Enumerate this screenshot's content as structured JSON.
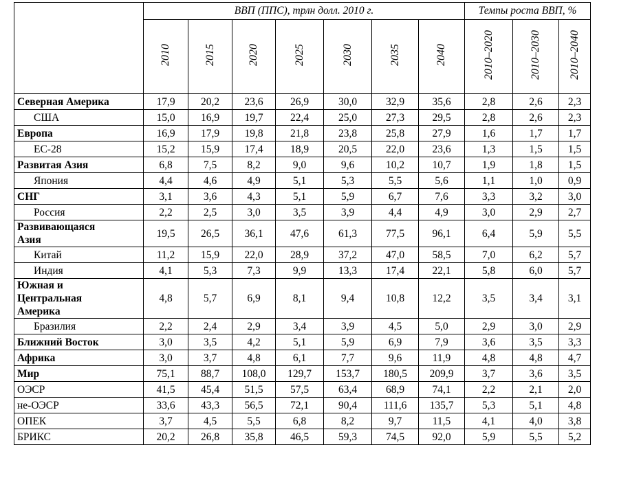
{
  "table": {
    "header": {
      "gdp": "ВВП (ППС), трлн долл. 2010 г.",
      "growth": "Темпы роста ВВП, %",
      "years": [
        "2010",
        "2015",
        "2020",
        "2025",
        "2030",
        "2035",
        "2040"
      ],
      "periods": [
        "2010–2020",
        "2010–2030",
        "2010–2040"
      ]
    },
    "rows": [
      {
        "label": "Северная Америка",
        "values": [
          "17,9",
          "20,2",
          "23,6",
          "26,9",
          "30,0",
          "32,9",
          "35,6",
          "2,8",
          "2,6",
          "2,3"
        ]
      },
      {
        "label": "США",
        "values": [
          "15,0",
          "16,9",
          "19,7",
          "22,4",
          "25,0",
          "27,3",
          "29,5",
          "2,8",
          "2,6",
          "2,3"
        ]
      },
      {
        "label": "Европа",
        "values": [
          "16,9",
          "17,9",
          "19,8",
          "21,8",
          "23,8",
          "25,8",
          "27,9",
          "1,6",
          "1,7",
          "1,7"
        ]
      },
      {
        "label": "ЕС-28",
        "values": [
          "15,2",
          "15,9",
          "17,4",
          "18,9",
          "20,5",
          "22,0",
          "23,6",
          "1,3",
          "1,5",
          "1,5"
        ]
      },
      {
        "label": "Развитая Азия",
        "values": [
          "6,8",
          "7,5",
          "8,2",
          "9,0",
          "9,6",
          "10,2",
          "10,7",
          "1,9",
          "1,8",
          "1,5"
        ]
      },
      {
        "label": "Япония",
        "values": [
          "4,4",
          "4,6",
          "4,9",
          "5,1",
          "5,3",
          "5,5",
          "5,6",
          "1,1",
          "1,0",
          "0,9"
        ]
      },
      {
        "label": "СНГ",
        "values": [
          "3,1",
          "3,6",
          "4,3",
          "5,1",
          "5,9",
          "6,7",
          "7,6",
          "3,3",
          "3,2",
          "3,0"
        ]
      },
      {
        "label": "Россия",
        "values": [
          "2,2",
          "2,5",
          "3,0",
          "3,5",
          "3,9",
          "4,4",
          "4,9",
          "3,0",
          "2,9",
          "2,7"
        ]
      },
      {
        "label": "Развивающаяся\nАзия",
        "values": [
          "19,5",
          "26,5",
          "36,1",
          "47,6",
          "61,3",
          "77,5",
          "96,1",
          "6,4",
          "5,9",
          "5,5"
        ]
      },
      {
        "label": "Китай",
        "values": [
          "11,2",
          "15,9",
          "22,0",
          "28,9",
          "37,2",
          "47,0",
          "58,5",
          "7,0",
          "6,2",
          "5,7"
        ]
      },
      {
        "label": "Индия",
        "values": [
          "4,1",
          "5,3",
          "7,3",
          "9,9",
          "13,3",
          "17,4",
          "22,1",
          "5,8",
          "6,0",
          "5,7"
        ]
      },
      {
        "label": "Южная и\nЦентральная\nАмерика",
        "values": [
          "4,8",
          "5,7",
          "6,9",
          "8,1",
          "9,4",
          "10,8",
          "12,2",
          "3,5",
          "3,4",
          "3,1"
        ]
      },
      {
        "label": "Бразилия",
        "values": [
          "2,2",
          "2,4",
          "2,9",
          "3,4",
          "3,9",
          "4,5",
          "5,0",
          "2,9",
          "3,0",
          "2,9"
        ]
      },
      {
        "label": "Ближний Восток",
        "values": [
          "3,0",
          "3,5",
          "4,2",
          "5,1",
          "5,9",
          "6,9",
          "7,9",
          "3,6",
          "3,5",
          "3,3"
        ]
      },
      {
        "label": "Африка",
        "values": [
          "3,0",
          "3,7",
          "4,8",
          "6,1",
          "7,7",
          "9,6",
          "11,9",
          "4,8",
          "4,8",
          "4,7"
        ]
      },
      {
        "label": "Мир",
        "values": [
          "75,1",
          "88,7",
          "108,0",
          "129,7",
          "153,7",
          "180,5",
          "209,9",
          "3,7",
          "3,6",
          "3,5"
        ]
      },
      {
        "label": "ОЭСР",
        "values": [
          "41,5",
          "45,4",
          "51,5",
          "57,5",
          "63,4",
          "68,9",
          "74,1",
          "2,2",
          "2,1",
          "2,0"
        ]
      },
      {
        "label": "не-ОЭСР",
        "values": [
          "33,6",
          "43,3",
          "56,5",
          "72,1",
          "90,4",
          "111,6",
          "135,7",
          "5,3",
          "5,1",
          "4,8"
        ]
      },
      {
        "label": "ОПЕК",
        "values": [
          "3,7",
          "4,5",
          "5,5",
          "6,8",
          "8,2",
          "9,7",
          "11,5",
          "4,1",
          "4,0",
          "3,8"
        ]
      },
      {
        "label": "БРИКС",
        "values": [
          "20,2",
          "26,8",
          "35,8",
          "46,5",
          "59,3",
          "74,5",
          "92,0",
          "5,9",
          "5,5",
          "5,2"
        ]
      }
    ]
  }
}
